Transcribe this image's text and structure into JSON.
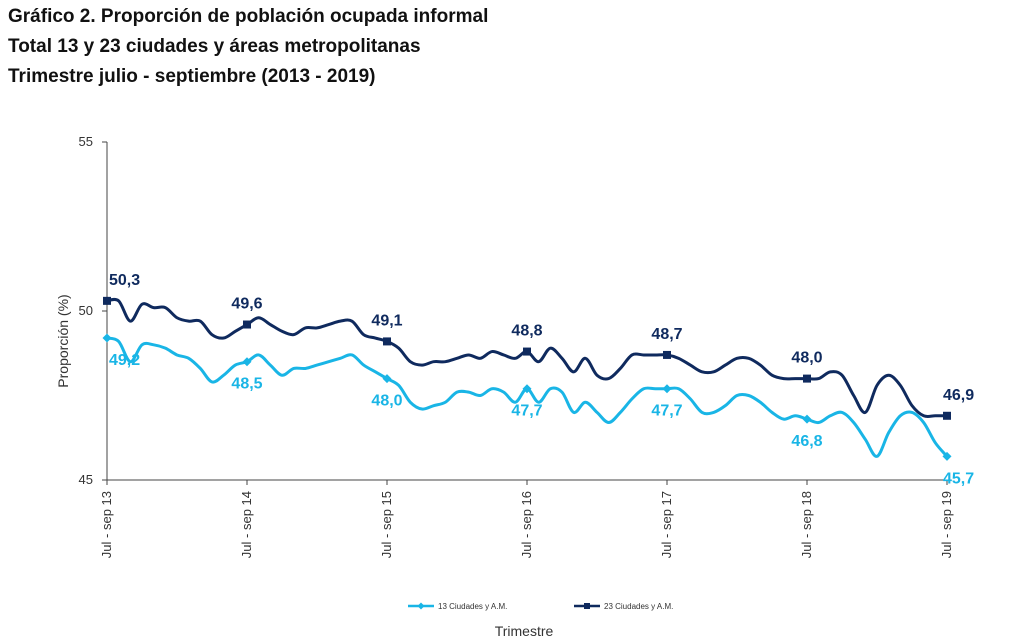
{
  "title": {
    "line1": "Gráfico 2. Proporción de población ocupada informal",
    "line2": "Total 13 y 23 ciudades y áreas  metropolitanas",
    "line3": "Trimestre julio - septiembre (2013 -  2019)"
  },
  "colors": {
    "series13": "#19b5e6",
    "series23": "#0f2a5e",
    "axis": "#444444"
  },
  "chart_data": {
    "type": "line",
    "xlabel": "Trimestre",
    "ylabel": "Proporción (%)",
    "ylim": [
      45,
      55
    ],
    "yticks": [
      "45",
      "50",
      "55"
    ],
    "grid": false,
    "legend_position": "bottom",
    "x_tick_labels": [
      "Jul - sep 13",
      "Jul - sep 14",
      "Jul - sep 15",
      "Jul - sep 16",
      "Jul - sep 17",
      "Jul - sep 18",
      "Jul - sep 19"
    ],
    "x_tick_index": [
      0,
      12,
      24,
      36,
      48,
      60,
      72
    ],
    "series": [
      {
        "name": "13 Ciudades y A.M.",
        "marker": "diamond",
        "values": [
          49.2,
          49.1,
          48.5,
          49.0,
          49.0,
          48.9,
          48.7,
          48.6,
          48.3,
          47.9,
          48.1,
          48.4,
          48.5,
          48.7,
          48.4,
          48.1,
          48.3,
          48.3,
          48.4,
          48.5,
          48.6,
          48.7,
          48.4,
          48.2,
          48.0,
          47.8,
          47.3,
          47.1,
          47.2,
          47.3,
          47.6,
          47.6,
          47.5,
          47.7,
          47.6,
          47.3,
          47.7,
          47.3,
          47.7,
          47.6,
          47.0,
          47.3,
          47.0,
          46.7,
          47.0,
          47.4,
          47.7,
          47.7,
          47.7,
          47.7,
          47.4,
          47.0,
          47.0,
          47.2,
          47.5,
          47.5,
          47.3,
          47.0,
          46.8,
          46.9,
          46.8,
          46.7,
          46.9,
          47.0,
          46.7,
          46.2,
          45.7,
          46.4,
          46.9,
          47.0,
          46.7,
          46.1,
          45.7
        ],
        "labels": [
          {
            "index": 0,
            "text": "49,2"
          },
          {
            "index": 12,
            "text": "48,5"
          },
          {
            "index": 24,
            "text": "48,0"
          },
          {
            "index": 36,
            "text": "47,7"
          },
          {
            "index": 48,
            "text": "47,7"
          },
          {
            "index": 60,
            "text": "46,8"
          },
          {
            "index": 72,
            "text": "45,7"
          }
        ]
      },
      {
        "name": "23  Ciudades y A.M.",
        "marker": "square",
        "values": [
          50.3,
          50.3,
          49.7,
          50.2,
          50.1,
          50.1,
          49.8,
          49.7,
          49.7,
          49.3,
          49.2,
          49.4,
          49.6,
          49.8,
          49.6,
          49.4,
          49.3,
          49.5,
          49.5,
          49.6,
          49.7,
          49.7,
          49.3,
          49.2,
          49.1,
          48.9,
          48.5,
          48.4,
          48.5,
          48.5,
          48.6,
          48.7,
          48.6,
          48.8,
          48.7,
          48.6,
          48.8,
          48.5,
          48.9,
          48.6,
          48.2,
          48.6,
          48.1,
          48.0,
          48.3,
          48.7,
          48.7,
          48.7,
          48.7,
          48.6,
          48.4,
          48.2,
          48.2,
          48.4,
          48.6,
          48.6,
          48.4,
          48.1,
          48.0,
          48.0,
          48.0,
          48.0,
          48.2,
          48.1,
          47.5,
          47.0,
          47.8,
          48.1,
          47.8,
          47.2,
          46.9,
          46.9,
          46.9
        ],
        "labels": [
          {
            "index": 0,
            "text": "50,3"
          },
          {
            "index": 12,
            "text": "49,6"
          },
          {
            "index": 24,
            "text": "49,1"
          },
          {
            "index": 36,
            "text": "48,8"
          },
          {
            "index": 48,
            "text": "48,7"
          },
          {
            "index": 60,
            "text": "48,0"
          },
          {
            "index": 72,
            "text": "46,9"
          }
        ]
      }
    ]
  }
}
